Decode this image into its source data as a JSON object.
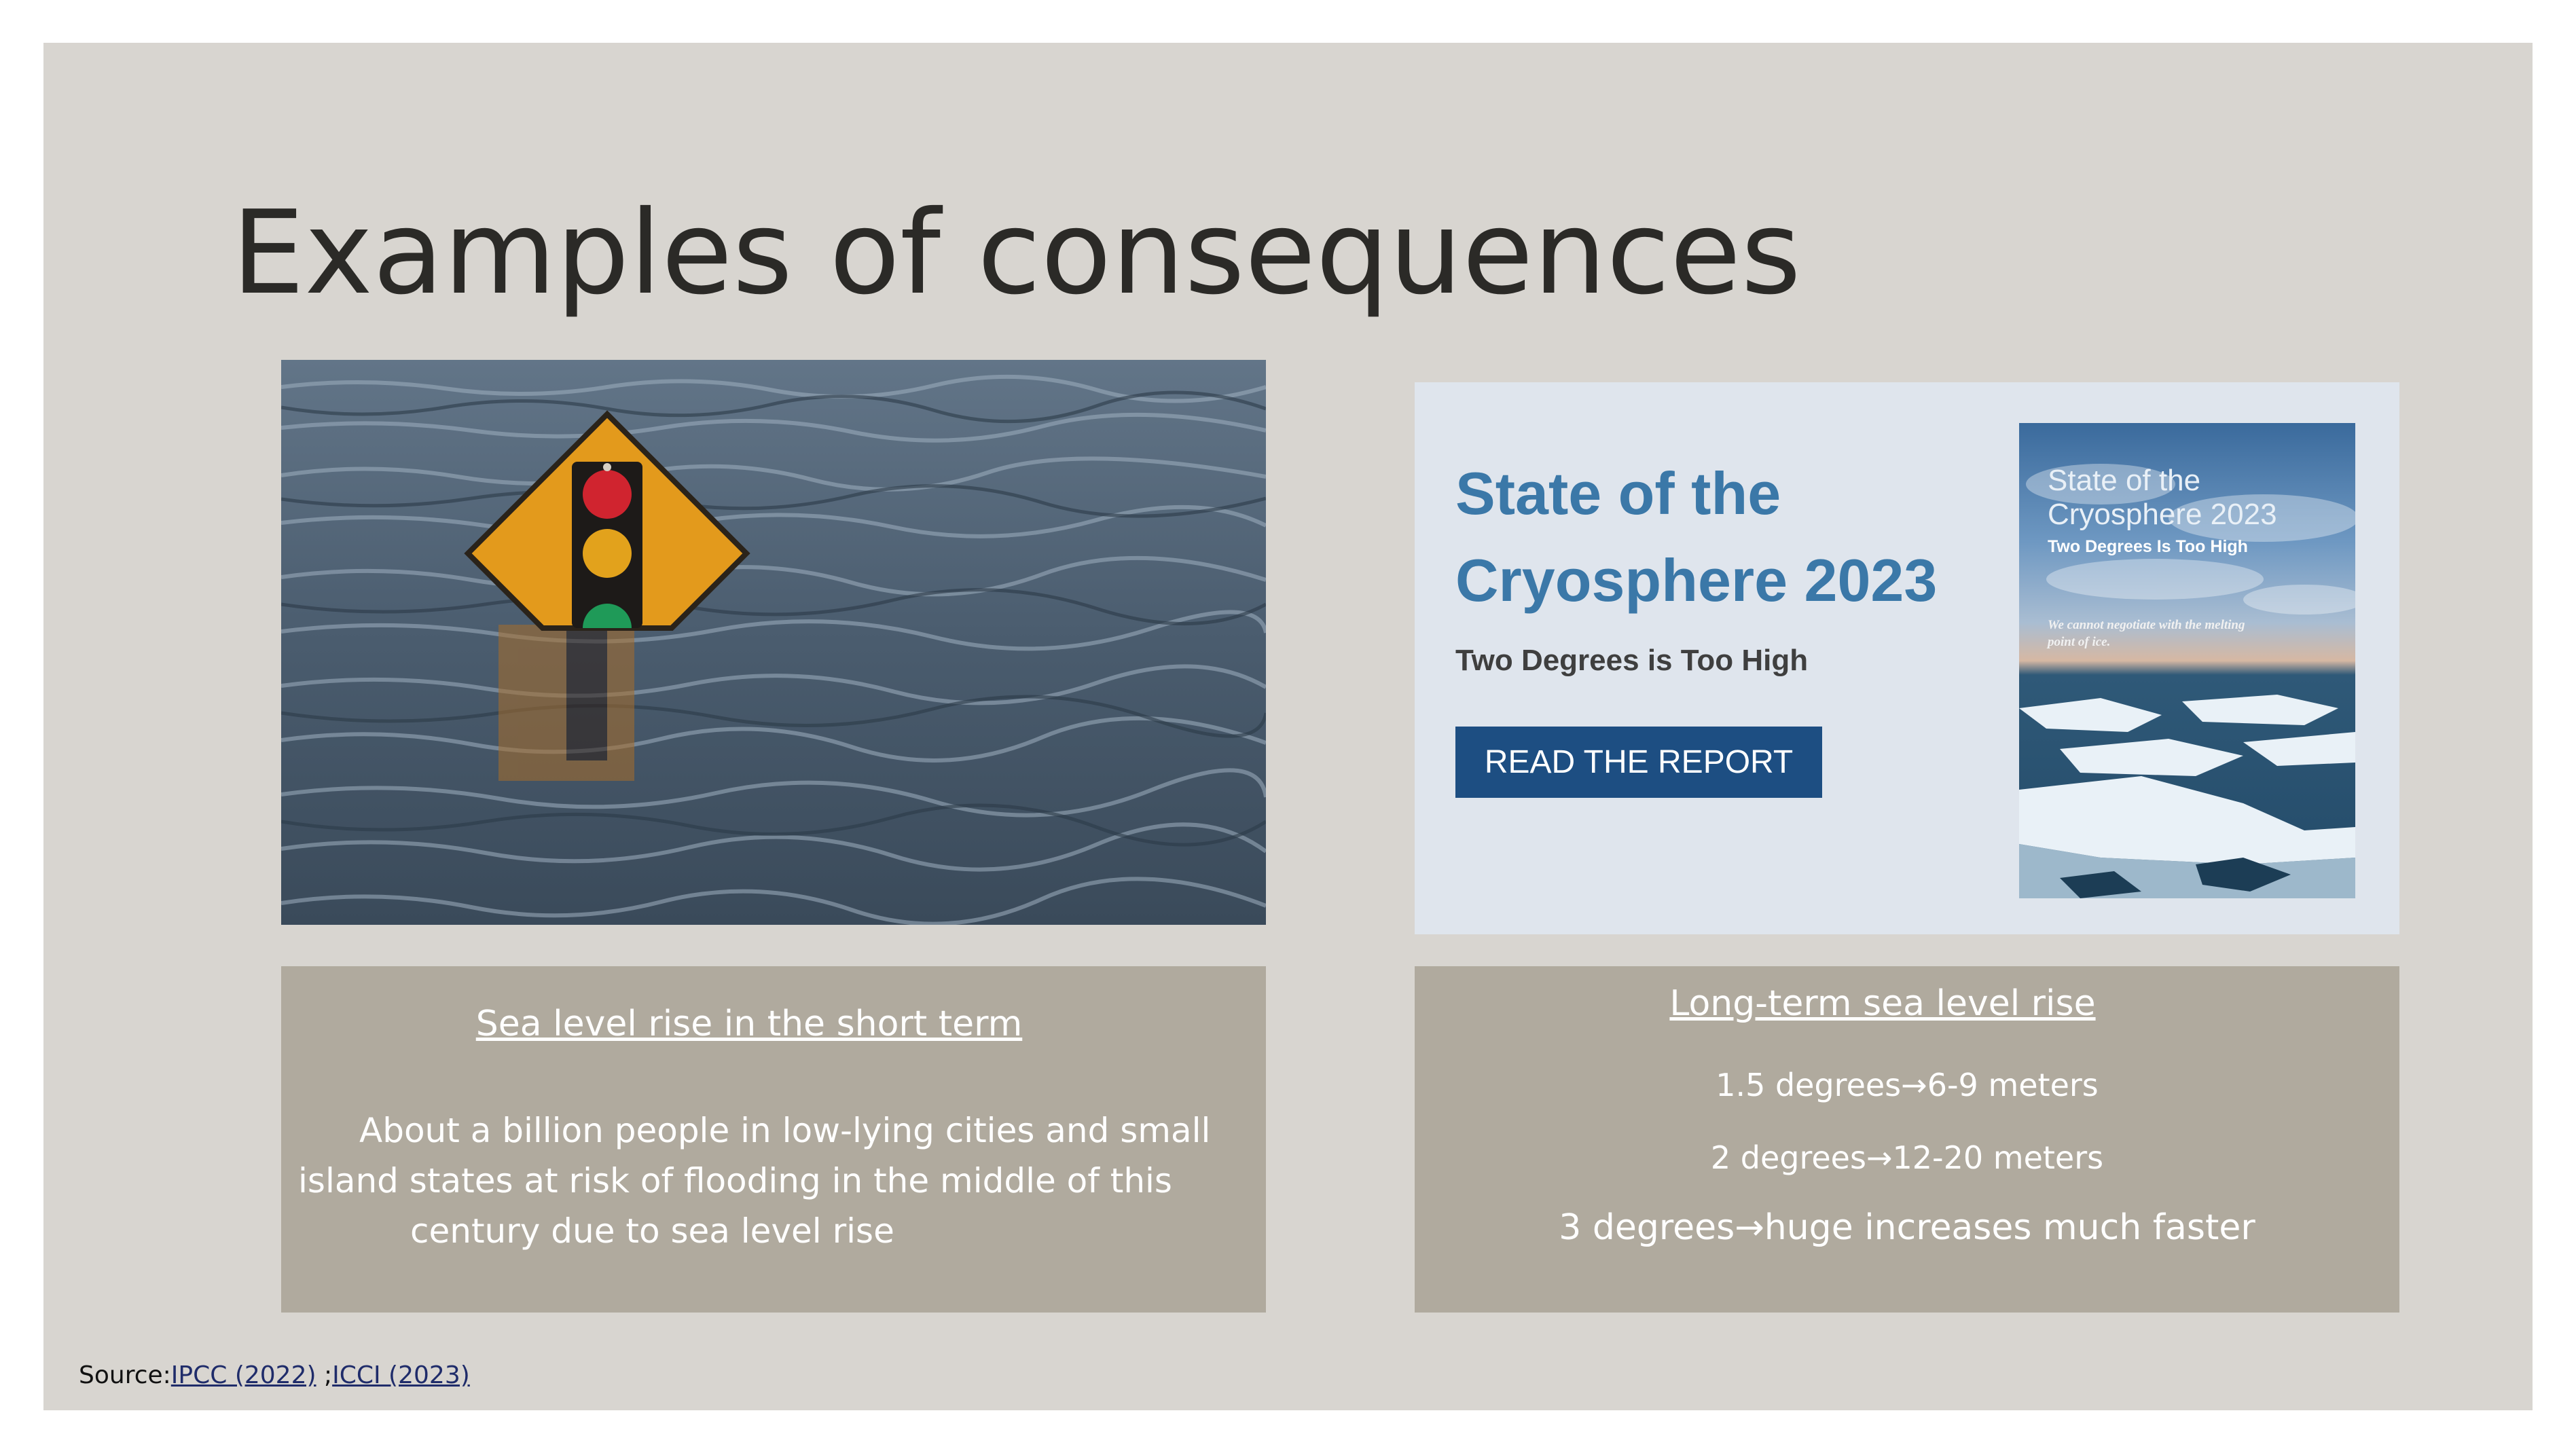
{
  "slide": {
    "title": "Examples of consequences"
  },
  "photo": {
    "icon": "flooded-traffic-sign-photo",
    "colors": {
      "water": "#4a5c6e",
      "sign": "#e39a1c",
      "red_light": "#d0242f",
      "yellow_light": "#e2a21c",
      "green_light": "#1f9a58"
    }
  },
  "report_card": {
    "title": "State of the Cryosphere 2023",
    "subtitle": "Two Degrees is Too High",
    "button_label": "READ THE REPORT",
    "cover": {
      "title": "State of the Cryosphere 2023",
      "subtitle": "Two Degrees Is Too High",
      "quote": "We cannot negotiate with the melting point of ice."
    },
    "colors": {
      "title": "#3b78a8",
      "button": "#1d4e82",
      "background": "#dfe5ed"
    }
  },
  "short_term": {
    "heading": "Sea level rise in the short term",
    "body_lines": [
      "About a billion people in low-lying cities and small",
      "island states at risk of flooding in the middle of this",
      "century due to sea level rise"
    ]
  },
  "long_term": {
    "heading": "Long-term sea level rise",
    "lines": [
      "1.5 degrees→6-9 meters",
      "2 degrees→12-20 meters",
      "3 degrees→huge increases much faster"
    ]
  },
  "source": {
    "label": "Source:",
    "link1": "IPCC (2022)",
    "separator": " ;",
    "link2": "ICCI (2023)"
  }
}
